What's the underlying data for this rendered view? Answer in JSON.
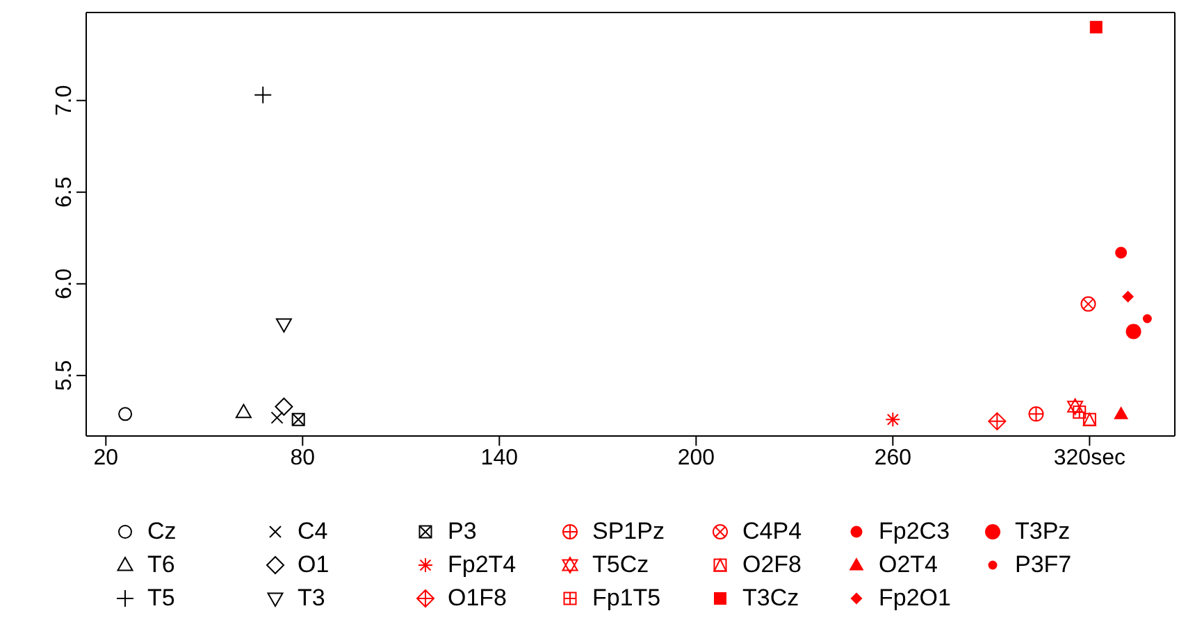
{
  "chart_data": {
    "type": "scatter",
    "legend": "bottom",
    "grid": false,
    "xlim": [
      14,
      346
    ],
    "xticks": [
      20,
      80,
      140,
      200,
      260,
      {
        "value": 320,
        "label": "320sec"
      }
    ],
    "ylim": [
      5.17,
      7.48
    ],
    "yticks": [
      {
        "value": 5.5,
        "label": "5.5"
      },
      {
        "value": 6,
        "label": "6.0"
      },
      {
        "value": 6.5,
        "label": "6.5"
      },
      {
        "value": 7,
        "label": "7.0"
      }
    ],
    "series": [
      {
        "name": "Cz",
        "color": "#000000",
        "marker": "circle-open",
        "x": [
          25.9
        ],
        "values": [
          5.29
        ]
      },
      {
        "name": "T6",
        "color": "#000000",
        "marker": "triangle-open",
        "x": [
          62
        ],
        "values": [
          5.3
        ]
      },
      {
        "name": "T5",
        "color": "#000000",
        "marker": "plus",
        "x": [
          67.9
        ],
        "values": [
          7.03
        ]
      },
      {
        "name": "C4",
        "color": "#000000",
        "marker": "x",
        "x": [
          72.2
        ],
        "values": [
          5.27
        ]
      },
      {
        "name": "O1",
        "color": "#000000",
        "marker": "diamond-open",
        "x": [
          74.3
        ],
        "values": [
          5.33
        ]
      },
      {
        "name": "T3",
        "color": "#000000",
        "marker": "triangle-down-open",
        "x": [
          74.3
        ],
        "values": [
          5.78
        ]
      },
      {
        "name": "P3",
        "color": "#000000",
        "marker": "square-x",
        "x": [
          78.7
        ],
        "values": [
          5.26
        ]
      },
      {
        "name": "Fp2T4",
        "color": "#ff0000",
        "marker": "cross",
        "x": [
          260
        ],
        "values": [
          5.26
        ]
      },
      {
        "name": "O1F8",
        "color": "#ff0000",
        "marker": "diamond-plus",
        "x": [
          291.8
        ],
        "values": [
          5.25
        ]
      },
      {
        "name": "SP1Pz",
        "color": "#ff0000",
        "marker": "circle-plus",
        "x": [
          303.7
        ],
        "values": [
          5.29
        ]
      },
      {
        "name": "T5Cz",
        "color": "#ff0000",
        "marker": "star",
        "x": [
          315.6
        ],
        "values": [
          5.33
        ]
      },
      {
        "name": "Fp1T5",
        "color": "#ff0000",
        "marker": "square-plus",
        "x": [
          316.9
        ],
        "values": [
          5.3
        ]
      },
      {
        "name": "C4P4",
        "color": "#ff0000",
        "marker": "circle-x",
        "x": [
          319.6
        ],
        "values": [
          5.89
        ]
      },
      {
        "name": "O2F8",
        "color": "#ff0000",
        "marker": "square-triangle",
        "x": [
          320
        ],
        "values": [
          5.26
        ]
      },
      {
        "name": "T3Cz",
        "color": "#ff0000",
        "marker": "square",
        "x": [
          322
        ],
        "values": [
          7.4
        ]
      },
      {
        "name": "Fp2C3",
        "color": "#ff0000",
        "marker": "circle",
        "x": [
          329.6
        ],
        "values": [
          6.17
        ]
      },
      {
        "name": "O2T4",
        "color": "#ff0000",
        "marker": "triangle",
        "x": [
          329.6
        ],
        "values": [
          5.29
        ]
      },
      {
        "name": "Fp2O1",
        "color": "#ff0000",
        "marker": "diamond",
        "x": [
          331.7
        ],
        "values": [
          5.93
        ]
      },
      {
        "name": "T3Pz",
        "color": "#ff0000",
        "marker": "circle-large",
        "x": [
          333.4
        ],
        "values": [
          5.74
        ]
      },
      {
        "name": "P3F7",
        "color": "#ff0000",
        "marker": "circle-small",
        "x": [
          337.6
        ],
        "values": [
          5.81
        ]
      }
    ]
  }
}
